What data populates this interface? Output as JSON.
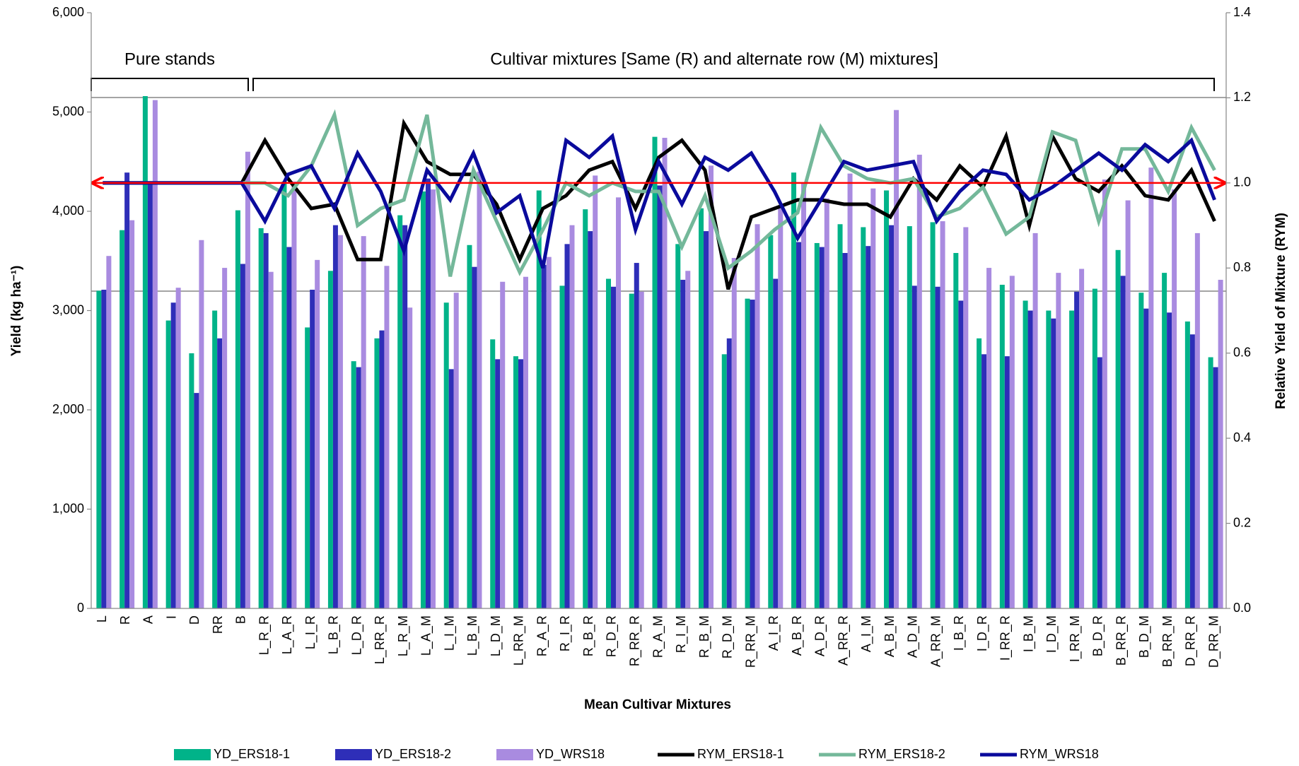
{
  "chart_data": {
    "type": "bar_line",
    "annotations": {
      "pure": "Pure stands",
      "mixtures": "Cultivar mixtures [Same (R) and alternate row (M) mixtures]"
    },
    "x_label": "Mean Cultivar Mixtures",
    "y_label": "Yield (kg ha⁻¹)",
    "y2_label": "Relative Yield of Mixture (RYM)",
    "categories": [
      "L",
      "R",
      "A",
      "I",
      "D",
      "RR",
      "B",
      "L_R_R",
      "L_A_R",
      "L_I_R",
      "L_B_R",
      "L_D_R",
      "L_RR_R",
      "L_R_M",
      "L_A_M",
      "L_I_M",
      "L_B_M",
      "L_D_M",
      "L_RR_M",
      "R_A_R",
      "R_I_R",
      "R_B_R",
      "R_D_R",
      "R_RR_R",
      "R_A_M",
      "R_I_M",
      "R_B_M",
      "R_D_M",
      "R_RR_M",
      "A_I_R",
      "A_B_R",
      "A_D_R",
      "A_RR_R",
      "A_I_M",
      "A_B_M",
      "A_D_M",
      "A_RR_M",
      "I_B_R",
      "I_D_R",
      "I_RR_R",
      "I_B_M",
      "I_D_M",
      "I_RR_M",
      "B_D_R",
      "B_RR_R",
      "B_D_M",
      "B_RR_M",
      "D_RR_R",
      "D_RR_M"
    ],
    "series": [
      {
        "name": "YD_ERS18-1",
        "color": "#00b389",
        "kind": "bar",
        "values": [
          3200,
          3810,
          5160,
          2900,
          2570,
          3000,
          4010,
          3830,
          4300,
          2830,
          3400,
          2490,
          2720,
          3960,
          4200,
          3080,
          3660,
          2710,
          2540,
          4210,
          3250,
          4020,
          3320,
          3170,
          4750,
          3670,
          4030,
          2560,
          3120,
          3760,
          4390,
          3680,
          3870,
          3840,
          4210,
          3850,
          3890,
          3580,
          2720,
          3260,
          3100,
          3000,
          3000,
          3220,
          3610,
          3180,
          3380,
          2890,
          2530
        ]
      },
      {
        "name": "YD_ERS18-2",
        "color": "#2e2eb8",
        "kind": "bar",
        "values": [
          3210,
          4390,
          4290,
          3080,
          2170,
          2720,
          3470,
          3780,
          3640,
          3210,
          3860,
          2430,
          2800,
          3860,
          4330,
          2410,
          3440,
          2510,
          2510,
          3460,
          3670,
          3800,
          3240,
          3480,
          4260,
          3310,
          3800,
          2720,
          3110,
          3320,
          3690,
          3640,
          3580,
          3650,
          3860,
          3250,
          3240,
          3100,
          2560,
          2540,
          3000,
          2920,
          3190,
          2530,
          3350,
          3020,
          2980,
          2760,
          2430
        ]
      },
      {
        "name": "YD_WRS18",
        "color": "#a98be0",
        "kind": "bar",
        "values": [
          3550,
          3910,
          5120,
          3230,
          3710,
          3430,
          4600,
          3390,
          4300,
          3510,
          3760,
          3750,
          3450,
          3030,
          4220,
          3180,
          4400,
          3290,
          3340,
          3540,
          3860,
          4360,
          4140,
          3190,
          4740,
          3400,
          4460,
          3530,
          3870,
          4030,
          4280,
          4130,
          4380,
          4230,
          5020,
          4570,
          3900,
          3840,
          3430,
          3350,
          3780,
          3380,
          3420,
          4320,
          4110,
          4440,
          4220,
          3780,
          3310
        ]
      },
      {
        "name": "RYM_ERS18-1",
        "color": "#000000",
        "kind": "line",
        "axis": "y2",
        "values": [
          1.0,
          1.0,
          1.0,
          1.0,
          1.0,
          1.0,
          1.0,
          1.1,
          1.01,
          0.94,
          0.95,
          0.82,
          0.82,
          1.14,
          1.05,
          1.02,
          1.02,
          0.95,
          0.82,
          0.94,
          0.97,
          1.03,
          1.05,
          0.94,
          1.06,
          1.1,
          1.03,
          0.75,
          0.92,
          0.94,
          0.96,
          0.96,
          0.95,
          0.95,
          0.92,
          1.01,
          0.96,
          1.04,
          0.99,
          1.11,
          0.9,
          1.11,
          1.01,
          0.98,
          1.04,
          0.97,
          0.96,
          1.03,
          0.91
        ]
      },
      {
        "name": "RYM_ERS18-2",
        "color": "#74b89a",
        "kind": "line",
        "axis": "y2",
        "values": [
          1.0,
          1.0,
          1.0,
          1.0,
          1.0,
          1.0,
          1.0,
          1.0,
          0.97,
          1.04,
          1.16,
          0.9,
          0.94,
          0.96,
          1.16,
          0.78,
          1.03,
          0.91,
          0.79,
          0.89,
          1.0,
          0.97,
          1.0,
          0.98,
          0.98,
          0.85,
          0.97,
          0.8,
          0.84,
          0.89,
          0.93,
          1.13,
          1.04,
          1.01,
          1.0,
          1.01,
          0.92,
          0.94,
          0.99,
          0.88,
          0.92,
          1.12,
          1.1,
          0.91,
          1.08,
          1.08,
          0.98,
          1.13,
          1.03
        ]
      },
      {
        "name": "RYM_WRS18",
        "color": "#0a0a9c",
        "kind": "line",
        "axis": "y2",
        "values": [
          1.0,
          1.0,
          1.0,
          1.0,
          1.0,
          1.0,
          1.0,
          0.91,
          1.02,
          1.04,
          0.94,
          1.07,
          0.98,
          0.84,
          1.03,
          0.96,
          1.07,
          0.93,
          0.97,
          0.8,
          1.1,
          1.06,
          1.11,
          0.89,
          1.05,
          0.95,
          1.06,
          1.03,
          1.07,
          0.98,
          0.87,
          0.96,
          1.05,
          1.03,
          1.04,
          1.05,
          0.91,
          0.98,
          1.03,
          1.02,
          0.96,
          0.99,
          1.03,
          1.07,
          1.03,
          1.09,
          1.05,
          1.1,
          0.96
        ]
      }
    ],
    "reference_line": 1.0,
    "reference_color": "#ff0000",
    "ylim": [
      0,
      6000
    ],
    "yticks": [
      0,
      {
        "value": 1000,
        "label": "1,000"
      },
      {
        "value": 2000,
        "label": "2,000"
      },
      {
        "value": 3000,
        "label": "3,000"
      },
      {
        "value": 4000,
        "label": "4,000"
      },
      {
        "value": 5000,
        "label": "5,000"
      },
      {
        "value": 6000,
        "label": "6,000"
      }
    ],
    "y2lim": [
      0,
      1.4
    ],
    "y2ticks": [
      {
        "value": 0,
        "label": "0.0"
      },
      0.2,
      0.4,
      0.6,
      0.8,
      {
        "value": 1,
        "label": "1.0"
      },
      1.2,
      1.4
    ],
    "grid": false,
    "legend": "bottom"
  }
}
